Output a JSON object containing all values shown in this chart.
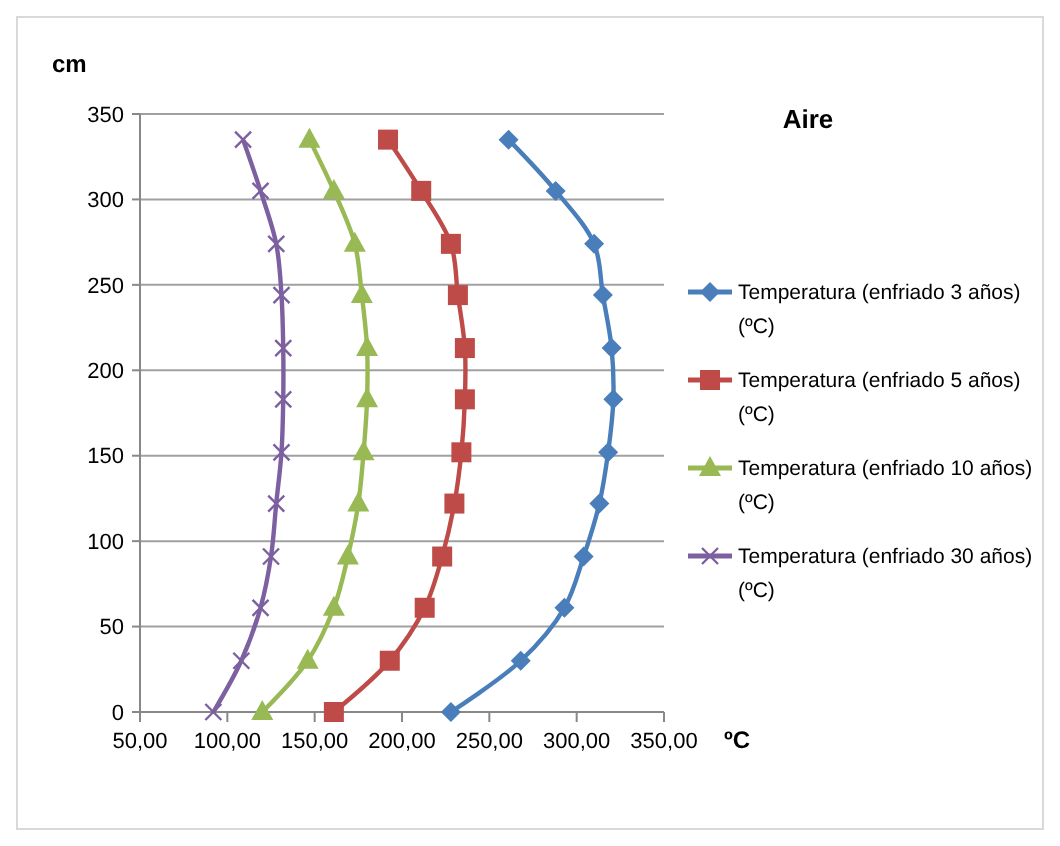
{
  "chart_data": {
    "type": "line",
    "title": "Aire",
    "xlabel": "ºC",
    "ylabel": "cm",
    "grid": "y",
    "legend": "right",
    "xlim": [
      50,
      350
    ],
    "ylim": [
      0,
      350
    ],
    "xticks": [
      {
        "value": 50,
        "label": "50,00"
      },
      {
        "value": 100,
        "label": "100,00"
      },
      {
        "value": 150,
        "label": "150,00"
      },
      {
        "value": 200,
        "label": "200,00"
      },
      {
        "value": 250,
        "label": "250,00"
      },
      {
        "value": 300,
        "label": "300,00"
      },
      {
        "value": 350,
        "label": "350,00"
      }
    ],
    "yticks": [
      0,
      50,
      100,
      150,
      200,
      250,
      300,
      350
    ],
    "series": [
      {
        "name": "Temperatura (enfriado 3 años) (ºC)",
        "color": "#4a7ebb",
        "marker": "diamond",
        "x": [
          228,
          268,
          293,
          304,
          313,
          318,
          321,
          320,
          315,
          310,
          288,
          261
        ],
        "values": [
          0,
          30,
          61,
          91,
          122,
          152,
          183,
          213,
          244,
          274,
          305,
          335
        ]
      },
      {
        "name": "Temperatura (enfriado 5 años) (ºC)",
        "color": "#be4b48",
        "marker": "square",
        "x": [
          161,
          193,
          213,
          223,
          230,
          234,
          236,
          236,
          232,
          228,
          211,
          192
        ],
        "values": [
          0,
          30,
          61,
          91,
          122,
          152,
          183,
          213,
          244,
          274,
          305,
          335
        ]
      },
      {
        "name": "Temperatura (enfriado 10 años) (ºC)",
        "color": "#98b954",
        "marker": "triangle",
        "x": [
          120,
          146,
          161,
          169,
          175,
          178,
          180,
          180,
          177,
          173,
          161,
          147
        ],
        "values": [
          0,
          30,
          61,
          91,
          122,
          152,
          183,
          213,
          244,
          274,
          305,
          335
        ]
      },
      {
        "name": "Temperatura (enfriado 30 años) (ºC)",
        "color": "#7d60a0",
        "marker": "cross",
        "x": [
          92,
          108,
          119,
          125,
          128,
          131,
          132,
          132,
          131,
          128,
          119,
          109
        ],
        "values": [
          0,
          30,
          61,
          91,
          122,
          152,
          183,
          213,
          244,
          274,
          305,
          335
        ]
      }
    ]
  }
}
